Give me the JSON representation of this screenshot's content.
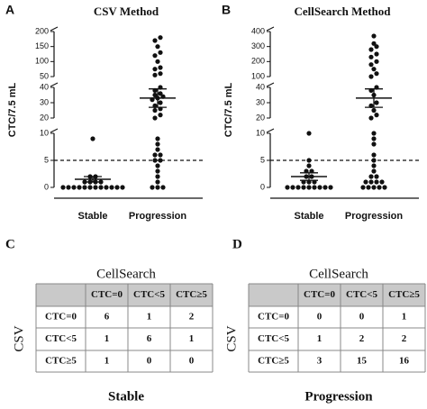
{
  "chart_data": [
    {
      "type": "dotplot",
      "panel": "A",
      "title": "CSV Method",
      "y_label": "CTC/7.5 mL",
      "categories": [
        "Stable",
        "Progression"
      ],
      "points": [
        [
          9,
          2,
          2,
          1,
          1,
          1,
          1,
          0,
          0,
          0,
          0,
          0,
          0,
          0,
          0,
          0,
          0,
          0,
          0
        ],
        [
          180,
          170,
          150,
          130,
          120,
          100,
          80,
          75,
          60,
          55,
          40,
          38,
          36,
          35,
          34,
          33,
          32,
          30,
          28,
          26,
          25,
          22,
          20,
          9,
          8,
          7,
          6,
          6,
          5,
          5,
          4,
          3,
          2,
          1,
          0,
          0,
          0
        ]
      ],
      "mean": [
        1.5,
        33
      ],
      "sem": [
        0.5,
        6
      ],
      "threshold": 5,
      "color": "#111111",
      "y_segments": [
        {
          "ylim": [
            0,
            10
          ],
          "yticks": [
            0,
            5,
            10
          ]
        },
        {
          "ylim": [
            20,
            40
          ],
          "yticks": [
            20,
            30,
            40
          ]
        },
        {
          "ylim": [
            50,
            200
          ],
          "yticks": [
            50,
            100,
            150,
            200
          ]
        }
      ]
    },
    {
      "type": "dotplot",
      "panel": "B",
      "title": "CellSearch Method",
      "y_label": "CTC/7.5 mL",
      "categories": [
        "Stable",
        "Progression"
      ],
      "points": [
        [
          10,
          5,
          4,
          3,
          3,
          2,
          2,
          1,
          1,
          1,
          0,
          0,
          0,
          0,
          0,
          0,
          0,
          0,
          0
        ],
        [
          370,
          320,
          300,
          280,
          250,
          230,
          200,
          180,
          150,
          120,
          100,
          40,
          38,
          35,
          30,
          28,
          25,
          22,
          20,
          10,
          9,
          8,
          6,
          5,
          4,
          3,
          2,
          2,
          1,
          1,
          1,
          1,
          0,
          0,
          0,
          0,
          0
        ]
      ],
      "mean": [
        2,
        33
      ],
      "sem": [
        0.7,
        6
      ],
      "threshold": 5,
      "color": "#111111",
      "y_segments": [
        {
          "ylim": [
            0,
            10
          ],
          "yticks": [
            0,
            5,
            10
          ]
        },
        {
          "ylim": [
            20,
            40
          ],
          "yticks": [
            20,
            30,
            40
          ]
        },
        {
          "ylim": [
            100,
            400
          ],
          "yticks": [
            100,
            200,
            300,
            400
          ]
        }
      ]
    }
  ],
  "tables": [
    {
      "panel": "C",
      "header": "CellSearch",
      "side": "CSV",
      "columns": [
        "CTC=0",
        "CTC<5",
        "CTC≥5"
      ],
      "rows": [
        {
          "label": "CTC=0",
          "cells": [
            "6",
            "1",
            "2"
          ]
        },
        {
          "label": "CTC<5",
          "cells": [
            "1",
            "6",
            "1"
          ]
        },
        {
          "label": "CTC≥5",
          "cells": [
            "1",
            "0",
            "0"
          ]
        }
      ],
      "caption": "Stable"
    },
    {
      "panel": "D",
      "header": "CellSearch",
      "side": "CSV",
      "columns": [
        "CTC=0",
        "CTC<5",
        "CTC≥5"
      ],
      "rows": [
        {
          "label": "CTC=0",
          "cells": [
            "0",
            "0",
            "1"
          ]
        },
        {
          "label": "CTC<5",
          "cells": [
            "1",
            "2",
            "2"
          ]
        },
        {
          "label": "CTC≥5",
          "cells": [
            "3",
            "15",
            "16"
          ]
        }
      ],
      "caption": "Progression"
    }
  ]
}
